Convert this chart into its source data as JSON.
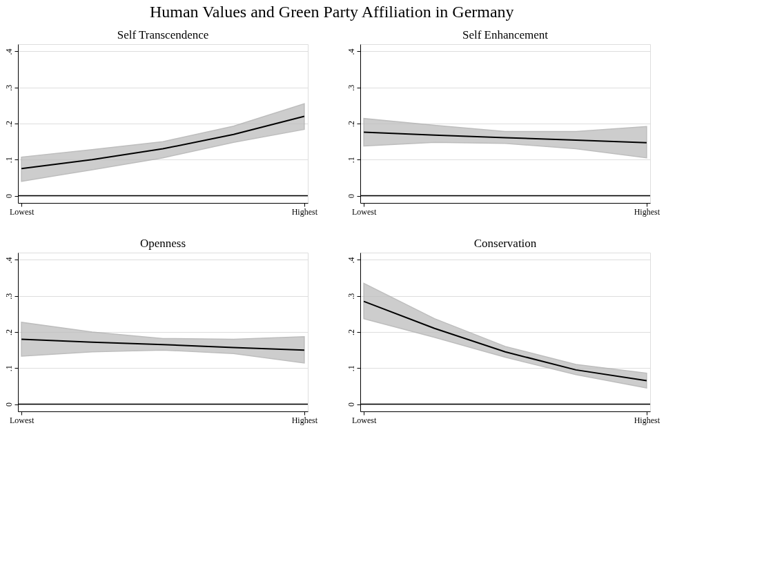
{
  "chart_data": [
    {
      "type": "line",
      "title": "Self Transcendence",
      "annotations": [
        "Human Values and Green Party Affiliation in Germany"
      ],
      "categories": [
        "Lowest",
        null,
        null,
        null,
        "Highest"
      ],
      "series": [
        {
          "color": "#000000",
          "values": [
            0.075,
            0.1,
            0.13,
            0.17,
            0.22
          ],
          "lower": [
            0.04,
            0.072,
            0.105,
            0.148,
            0.184
          ],
          "upper": [
            0.107,
            0.128,
            0.15,
            0.193,
            0.255
          ]
        }
      ],
      "ylim": [
        -0.02,
        0.42
      ],
      "yticks": [
        {
          "value": 0,
          "label": "0"
        },
        {
          "value": 0.1,
          "label": ".1"
        },
        {
          "value": 0.2,
          "label": ".2"
        },
        {
          "value": 0.3,
          "label": ".3"
        },
        {
          "value": 0.4,
          "label": ".4"
        }
      ],
      "grid": "y",
      "ref_lines": [
        {
          "axis": "y",
          "value": 0,
          "color": "#000000"
        }
      ]
    },
    {
      "type": "line",
      "title": "Self Enhancement",
      "categories": [
        "Lowest",
        null,
        null,
        null,
        "Highest"
      ],
      "series": [
        {
          "color": "#000000",
          "values": [
            0.176,
            0.168,
            0.161,
            0.154,
            0.147
          ],
          "lower": [
            0.138,
            0.148,
            0.145,
            0.13,
            0.105
          ],
          "upper": [
            0.214,
            0.195,
            0.178,
            0.178,
            0.192
          ]
        }
      ],
      "ylim": [
        -0.02,
        0.42
      ],
      "yticks": [
        {
          "value": 0,
          "label": "0"
        },
        {
          "value": 0.1,
          "label": ".1"
        },
        {
          "value": 0.2,
          "label": ".2"
        },
        {
          "value": 0.3,
          "label": ".3"
        },
        {
          "value": 0.4,
          "label": ".4"
        }
      ],
      "grid": "y",
      "ref_lines": [
        {
          "axis": "y",
          "value": 0,
          "color": "#000000"
        }
      ]
    },
    {
      "type": "line",
      "title": "Openness",
      "categories": [
        "Lowest",
        null,
        null,
        null,
        "Highest"
      ],
      "series": [
        {
          "color": "#000000",
          "values": [
            0.18,
            0.172,
            0.165,
            0.157,
            0.15
          ],
          "lower": [
            0.133,
            0.145,
            0.15,
            0.14,
            0.114
          ],
          "upper": [
            0.227,
            0.2,
            0.182,
            0.18,
            0.187
          ]
        }
      ],
      "ylim": [
        -0.02,
        0.42
      ],
      "yticks": [
        {
          "value": 0,
          "label": "0"
        },
        {
          "value": 0.1,
          "label": ".1"
        },
        {
          "value": 0.2,
          "label": ".2"
        },
        {
          "value": 0.3,
          "label": ".3"
        },
        {
          "value": 0.4,
          "label": ".4"
        }
      ],
      "grid": "y",
      "ref_lines": [
        {
          "axis": "y",
          "value": 0,
          "color": "#000000"
        }
      ]
    },
    {
      "type": "line",
      "title": "Conservation",
      "categories": [
        "Lowest",
        null,
        null,
        null,
        "Highest"
      ],
      "series": [
        {
          "color": "#000000",
          "values": [
            0.285,
            0.21,
            0.145,
            0.095,
            0.065
          ],
          "lower": [
            0.237,
            0.185,
            0.13,
            0.082,
            0.045
          ],
          "upper": [
            0.335,
            0.237,
            0.16,
            0.11,
            0.086
          ]
        }
      ],
      "ylim": [
        -0.02,
        0.42
      ],
      "yticks": [
        {
          "value": 0,
          "label": "0"
        },
        {
          "value": 0.1,
          "label": ".1"
        },
        {
          "value": 0.2,
          "label": ".2"
        },
        {
          "value": 0.3,
          "label": ".3"
        },
        {
          "value": 0.4,
          "label": ".4"
        }
      ],
      "grid": "y",
      "ref_lines": [
        {
          "axis": "y",
          "value": 0,
          "color": "#000000"
        }
      ]
    }
  ]
}
